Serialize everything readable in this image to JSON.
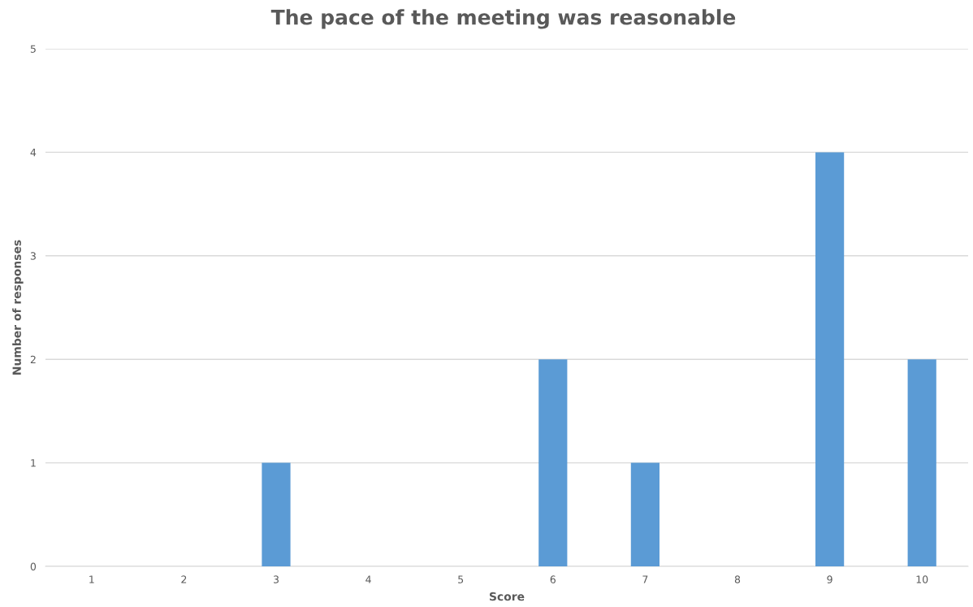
{
  "chart_data": {
    "type": "bar",
    "title": "The pace of the meeting was reasonable",
    "xlabel": "Score",
    "ylabel": "Number of responses",
    "categories": [
      "1",
      "2",
      "3",
      "4",
      "5",
      "6",
      "7",
      "8",
      "9",
      "10"
    ],
    "values": [
      0,
      0,
      1,
      0,
      0,
      2,
      1,
      0,
      4,
      2
    ],
    "color": "#5b9bd5",
    "ylim": [
      0,
      5
    ],
    "yticks": [
      0,
      1,
      2,
      3,
      4,
      5
    ],
    "grid": "y",
    "legend": false
  }
}
